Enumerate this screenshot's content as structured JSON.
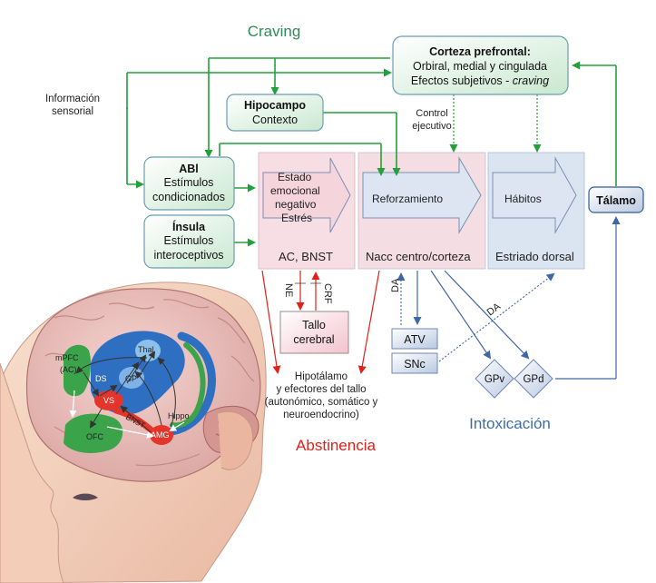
{
  "labels": {
    "craving": "Craving",
    "info_line1": "Información",
    "info_line2": "sensorial",
    "intoxicacion": "Intoxicación",
    "abstinencia": "Abstinencia",
    "control_line1": "Control",
    "control_line2": "ejecutivo"
  },
  "boxes": {
    "corteza": {
      "title": "Corteza prefrontal:",
      "line2": "Orbiral, medial y cingulada",
      "line3_plain": "Efectos subjetivos - ",
      "line3_italic": "craving"
    },
    "hipocampo": {
      "title": "Hipocampo",
      "line2": "Contexto"
    },
    "abl": {
      "title": "ABl",
      "line2": "Estímulos",
      "line3": "condicionados"
    },
    "insula": {
      "title": "Ínsula",
      "line2": "Estímulos",
      "line3": "interoceptivos"
    },
    "talamo": {
      "title": "Tálamo"
    },
    "tallo": {
      "line1": "Tallo",
      "line2": "cerebral"
    },
    "atv": {
      "title": "ATV"
    },
    "snc": {
      "title": "SNc"
    },
    "gpv": {
      "title": "GPv"
    },
    "gpd": {
      "title": "GPd"
    }
  },
  "panels": {
    "estado": {
      "arrow_lines": [
        "Estado",
        "emocional",
        "negativo",
        "Estrés"
      ],
      "bottom": "AC, BNST"
    },
    "nacc": {
      "arrow_text": "Reforzamiento",
      "bottom": "Nacc centro/corteza"
    },
    "estriado": {
      "arrow_text": "Hábitos",
      "bottom": "Estriado dorsal"
    }
  },
  "signals": {
    "ne": "NE",
    "crf": "CRF",
    "da1": "DA",
    "da2": "DA"
  },
  "hipotalamo": {
    "line1": "Hipotálamo",
    "line2": "y efectores del tallo",
    "line3": "(autonómico, somático y",
    "line4": "neuroendocrino)"
  },
  "brain": {
    "mpfc": "mPFC",
    "ac": "(AC)",
    "ds": "DS",
    "gp": "GP",
    "thal": "Thal",
    "vs": "VS",
    "bnst": "BNST",
    "ofc": "OFC",
    "amg": "AMG",
    "hippo": "Hippo"
  },
  "colors": {
    "green": "#22a03a",
    "green_text": "#2e8b57",
    "blue_text": "#3a6ea8",
    "red": "#e0201a",
    "arrow_blue": "#3f67a8",
    "panel_pink": "#f7dde4",
    "panel_blue": "#dbe4f1"
  }
}
